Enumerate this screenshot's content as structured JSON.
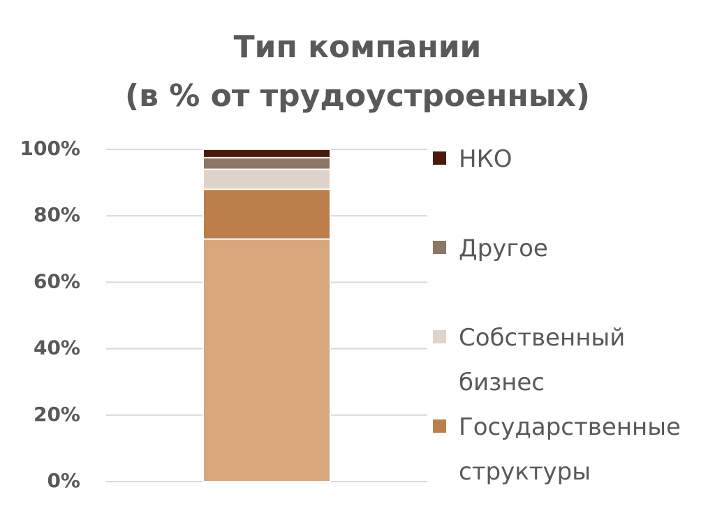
{
  "chart_data": {
    "type": "stacked_bar",
    "title": [
      "Тип компании",
      "(в % от трудоустроенных)"
    ],
    "categories": [
      null
    ],
    "series": [
      {
        "color": "#d9a77c",
        "values": [
          73
        ]
      },
      {
        "name": "Государственные структуры",
        "color": "#bc7f4b",
        "values": [
          15
        ]
      },
      {
        "name": "Собственный бизнес",
        "color": "#e0d4ca",
        "values": [
          6
        ]
      },
      {
        "name": "Другое",
        "color": "#8c7665",
        "values": [
          3.5
        ]
      },
      {
        "name": "НКО",
        "color": "#4a1b0a",
        "values": [
          2.5
        ]
      }
    ],
    "ylim": [
      0,
      100
    ],
    "yticks": [
      {
        "value": 0,
        "label": "0%"
      },
      {
        "value": 20,
        "label": "20%"
      },
      {
        "value": 40,
        "label": "40%"
      },
      {
        "value": 60,
        "label": "60%"
      },
      {
        "value": 80,
        "label": "80%"
      },
      {
        "value": 100,
        "label": "100%"
      }
    ],
    "grid": true,
    "legend": "right"
  }
}
